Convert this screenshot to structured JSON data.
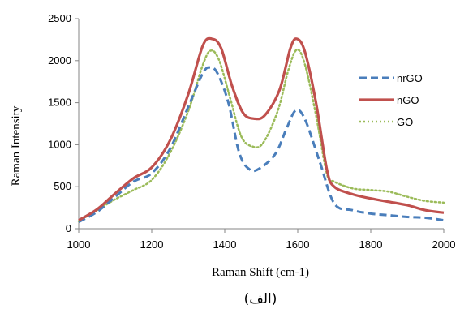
{
  "chart_data": {
    "type": "line",
    "xlabel": "Raman Shift (cm-1)",
    "ylabel": "Raman Intensity",
    "xlim": [
      1000,
      2000
    ],
    "ylim": [
      0,
      2500
    ],
    "xticks": [
      "1000",
      "1200",
      "1400",
      "1600",
      "1800",
      "2000"
    ],
    "yticks": [
      "0",
      "500",
      "1000",
      "1500",
      "2000",
      "2500"
    ],
    "legend_position": "right",
    "caption": "(الف)",
    "series": [
      {
        "name": "nrGO",
        "color": "#4a7ebb",
        "style": "dashed",
        "points": [
          [
            1000,
            80
          ],
          [
            1050,
            200
          ],
          [
            1100,
            380
          ],
          [
            1150,
            560
          ],
          [
            1200,
            660
          ],
          [
            1250,
            950
          ],
          [
            1300,
            1450
          ],
          [
            1340,
            1850
          ],
          [
            1360,
            1920
          ],
          [
            1380,
            1850
          ],
          [
            1410,
            1500
          ],
          [
            1440,
            900
          ],
          [
            1470,
            700
          ],
          [
            1500,
            730
          ],
          [
            1540,
            900
          ],
          [
            1570,
            1200
          ],
          [
            1595,
            1410
          ],
          [
            1620,
            1300
          ],
          [
            1660,
            800
          ],
          [
            1700,
            300
          ],
          [
            1750,
            220
          ],
          [
            1800,
            180
          ],
          [
            1850,
            160
          ],
          [
            1900,
            140
          ],
          [
            1950,
            130
          ],
          [
            2000,
            100
          ]
        ]
      },
      {
        "name": "nGO",
        "color": "#c0504d",
        "style": "solid",
        "points": [
          [
            1000,
            100
          ],
          [
            1050,
            230
          ],
          [
            1100,
            420
          ],
          [
            1150,
            600
          ],
          [
            1200,
            730
          ],
          [
            1250,
            1050
          ],
          [
            1300,
            1600
          ],
          [
            1340,
            2180
          ],
          [
            1365,
            2260
          ],
          [
            1390,
            2150
          ],
          [
            1420,
            1700
          ],
          [
            1450,
            1380
          ],
          [
            1480,
            1310
          ],
          [
            1510,
            1350
          ],
          [
            1550,
            1650
          ],
          [
            1580,
            2150
          ],
          [
            1598,
            2260
          ],
          [
            1620,
            2100
          ],
          [
            1650,
            1500
          ],
          [
            1680,
            700
          ],
          [
            1700,
            500
          ],
          [
            1750,
            410
          ],
          [
            1800,
            360
          ],
          [
            1850,
            320
          ],
          [
            1900,
            280
          ],
          [
            1950,
            220
          ],
          [
            2000,
            190
          ]
        ]
      },
      {
        "name": "GO",
        "color": "#9bbb59",
        "style": "dotted",
        "points": [
          [
            1000,
            90
          ],
          [
            1050,
            220
          ],
          [
            1100,
            350
          ],
          [
            1150,
            460
          ],
          [
            1200,
            580
          ],
          [
            1250,
            900
          ],
          [
            1300,
            1400
          ],
          [
            1340,
            1950
          ],
          [
            1362,
            2120
          ],
          [
            1385,
            2000
          ],
          [
            1415,
            1550
          ],
          [
            1445,
            1100
          ],
          [
            1475,
            980
          ],
          [
            1505,
            1020
          ],
          [
            1545,
            1400
          ],
          [
            1575,
            1900
          ],
          [
            1598,
            2130
          ],
          [
            1620,
            1950
          ],
          [
            1650,
            1350
          ],
          [
            1680,
            650
          ],
          [
            1700,
            560
          ],
          [
            1750,
            480
          ],
          [
            1800,
            460
          ],
          [
            1850,
            440
          ],
          [
            1900,
            380
          ],
          [
            1950,
            330
          ],
          [
            2000,
            310
          ]
        ]
      }
    ]
  }
}
